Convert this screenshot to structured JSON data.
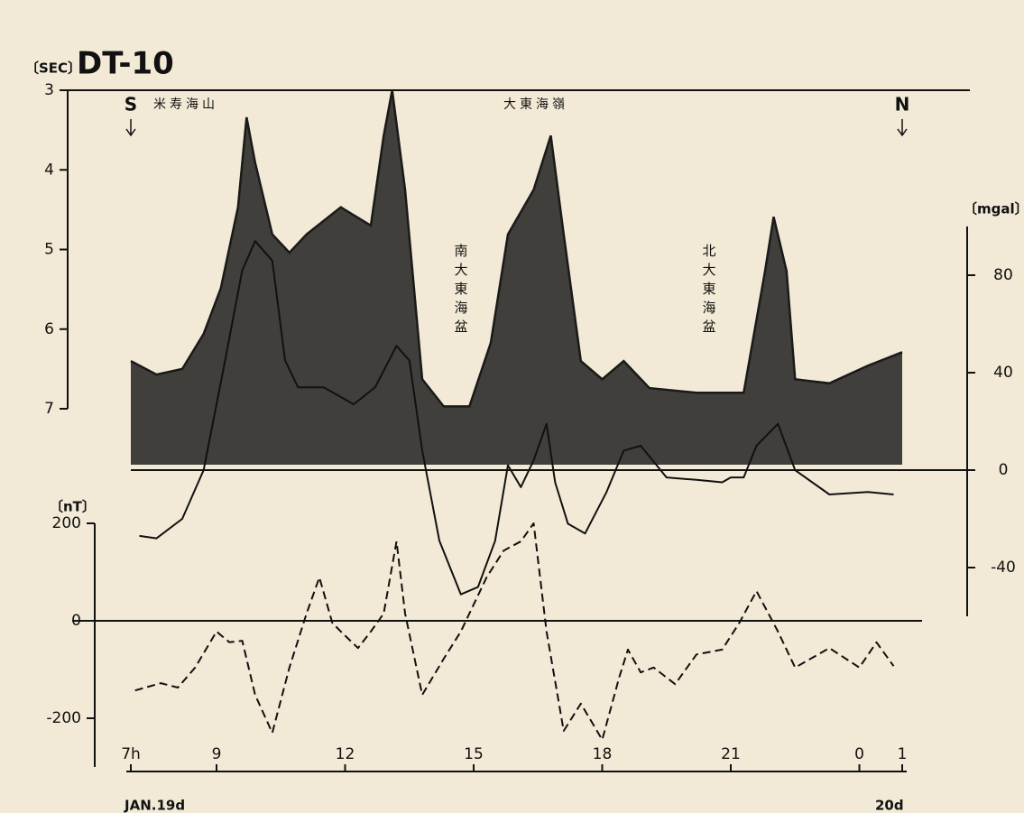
{
  "chart_data": {
    "type": "line",
    "title": "DT-10",
    "y_label": "〔SEC〕",
    "y2_label": "〔mgal〕",
    "y3_label": "〔nT〕",
    "south_label": "S",
    "north_label": "N",
    "date_labels": [
      "JAN.19d",
      "20d"
    ],
    "annotations": [
      "米寿海山",
      "大東海嶺",
      "南大東海盆",
      "北大東海盆"
    ],
    "xlim": [
      7,
      25
    ],
    "xticks": [
      {
        "value": 7,
        "label": "7h"
      },
      9,
      12,
      15,
      18,
      21,
      {
        "value": 24,
        "label": "0"
      },
      {
        "value": 25,
        "label": "1"
      }
    ],
    "ylim": [
      3,
      7
    ],
    "y_inverted": true,
    "yticks": [
      3,
      4,
      5,
      6,
      7
    ],
    "y2lim": [
      -60,
      100
    ],
    "y2ticks": [
      -40,
      0,
      40,
      80
    ],
    "y3lim": [
      -300,
      200
    ],
    "y3ticks": [
      -200,
      0,
      200
    ],
    "series": [
      {
        "axis": "y",
        "style": "area",
        "color": "#1a1a1a",
        "x": [
          7.0,
          7.6,
          8.2,
          8.7,
          9.1,
          9.5,
          9.7,
          9.9,
          10.3,
          10.7,
          11.1,
          11.9,
          12.6,
          12.9,
          13.1,
          13.4,
          13.8,
          14.3,
          14.9,
          15.4,
          15.8,
          16.4,
          16.8,
          17.1,
          17.5,
          18.0,
          18.5,
          19.1,
          20.2,
          21.3,
          21.8,
          22.0,
          22.3,
          22.5,
          23.3,
          24.2,
          25.0
        ],
        "values": [
          6.4,
          6.57,
          6.5,
          6.06,
          5.49,
          4.47,
          3.34,
          3.91,
          4.81,
          5.04,
          4.81,
          4.47,
          4.7,
          3.57,
          3.0,
          4.25,
          6.63,
          6.97,
          6.97,
          6.17,
          4.81,
          4.25,
          3.57,
          4.81,
          6.4,
          6.63,
          6.4,
          6.74,
          6.8,
          6.8,
          5.27,
          4.59,
          5.27,
          6.63,
          6.68,
          6.46,
          6.29
        ]
      },
      {
        "axis": "y2",
        "style": "solid",
        "color": "#111111",
        "x": [
          7.2,
          7.6,
          8.2,
          8.7,
          9.2,
          9.6,
          9.9,
          10.3,
          10.6,
          10.9,
          11.5,
          12.2,
          12.7,
          13.2,
          13.5,
          13.8,
          14.2,
          14.7,
          15.1,
          15.5,
          15.8,
          16.1,
          16.4,
          16.7,
          16.9,
          17.2,
          17.6,
          18.1,
          18.5,
          18.9,
          19.5,
          20.2,
          20.8,
          21.0,
          21.3,
          21.6,
          22.1,
          22.5,
          23.3,
          24.2,
          24.8
        ],
        "values": [
          -27,
          -28,
          -20,
          0,
          45,
          82,
          94,
          86,
          45,
          34,
          34,
          27,
          34,
          51,
          45,
          8,
          -29,
          -51,
          -48,
          -29,
          2,
          -7,
          4,
          19,
          -5,
          -22,
          -26,
          -9,
          8,
          10,
          -3,
          -4,
          -5,
          -3,
          -3,
          10,
          19,
          0,
          -10,
          -9,
          -10
        ]
      },
      {
        "axis": "y3",
        "style": "dashed",
        "color": "#111111",
        "x": [
          7.1,
          7.7,
          8.1,
          8.5,
          9.0,
          9.3,
          9.6,
          9.9,
          10.3,
          10.7,
          11.1,
          11.4,
          11.7,
          11.9,
          12.3,
          12.6,
          12.9,
          13.2,
          13.4,
          13.8,
          14.3,
          14.7,
          15.3,
          15.7,
          16.1,
          16.4,
          16.7,
          17.1,
          17.5,
          18.0,
          18.4,
          18.6,
          18.9,
          19.2,
          19.7,
          20.2,
          20.8,
          21.2,
          21.6,
          22.1,
          22.5,
          23.3,
          24.0,
          24.4,
          24.8
        ],
        "values": [
          -143,
          -128,
          -137,
          -96,
          -22,
          -44,
          -41,
          -152,
          -230,
          -96,
          15,
          89,
          -4,
          -22,
          -56,
          -22,
          15,
          163,
          15,
          -152,
          -78,
          -22,
          89,
          144,
          163,
          200,
          -22,
          -226,
          -170,
          -244,
          -115,
          -59,
          -106,
          -96,
          -130,
          -69,
          -59,
          -4,
          61,
          -22,
          -96,
          -56,
          -96,
          -44,
          -93
        ]
      }
    ]
  }
}
